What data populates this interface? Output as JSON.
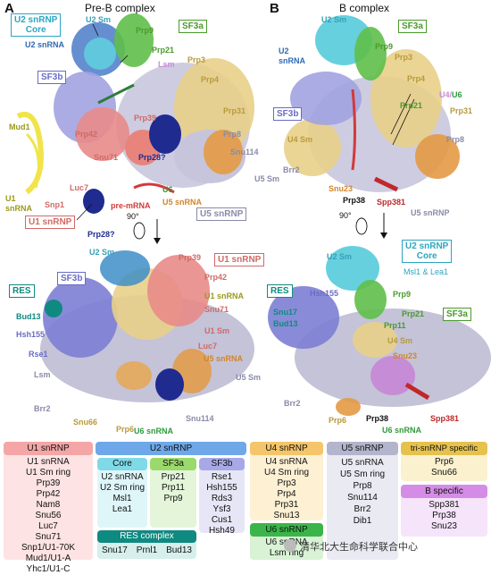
{
  "panelA": {
    "letter": "A",
    "title": "Pre-B complex",
    "labels": {
      "u2core_line1": "U2 snRNP",
      "u2core_line2": "Core",
      "u2sm": "U2 Sm",
      "sf3a": "SF3a",
      "prp9": "Prp9",
      "u2snrna": "U2 snRNA",
      "prp21": "Prp21",
      "lsm": "Lsm",
      "prp3": "Prp3",
      "prp4": "Prp4",
      "sf3b": "SF3b",
      "mud1": "Mud1",
      "prp42": "Prp42",
      "prp39": "Prp39",
      "prp31": "Prp31",
      "prp8": "Prp8",
      "snu71": "Snu71",
      "prp28a": "Prp28?",
      "snu114": "Snu114",
      "u5sm": "U5 Sm",
      "luc7": "Luc7",
      "u6": "U6",
      "u5snrna": "U5 snRNA",
      "u1snrna_line1": "U1",
      "u1snrna_line2": "snRNA",
      "snp1": "Snp1",
      "premrna": "pre-mRNA",
      "u1snrnp": "U1 snRNP",
      "prp28b": "Prp28?",
      "u5snrnp": "U5 snRNP",
      "rot": "90°",
      "res": "RES",
      "sf3b2": "SF3b",
      "u2sm2": "U2 Sm",
      "prp39b": "Prp39",
      "u1snrnp2": "U1 snRNP",
      "prp42b": "Prp42",
      "u1snrna2": "U1 snRNA",
      "snu71b": "Snu71",
      "bud13": "Bud13",
      "hsh155": "Hsh155",
      "u1sm": "U1 Sm",
      "rse1": "Rse1",
      "luc7b": "Luc7",
      "u5snrna2": "U5 snRNA",
      "lsm2": "Lsm",
      "u5sm2": "U5 Sm",
      "brr2": "Brr2",
      "snu66": "Snu66",
      "prp6": "Prp6",
      "snu114b": "Snu114",
      "u6snrna": "U6 snRNA"
    }
  },
  "panelB": {
    "letter": "B",
    "title": "B complex",
    "labels": {
      "u2sm": "U2 Sm",
      "sf3a": "SF3a",
      "prp9": "Prp9",
      "u2snrna_line1": "U2",
      "u2snrna_line2": "snRNA",
      "prp3": "Prp3",
      "prp4": "Prp4",
      "u4u6_a": "U4/",
      "u4u6_b": "U6",
      "sf3b": "SF3b",
      "prp21": "Prp21",
      "prp31": "Prp31",
      "prp8": "Prp8",
      "u4sm": "U4 Sm",
      "brr2": "Brr2",
      "snu23": "Snu23",
      "prp38": "Prp38",
      "spp381": "Spp381",
      "u5snrnp": "U5 snRNP",
      "rot": "90°",
      "u2core_line1": "U2 snRNP",
      "u2core_line2": "Core",
      "u2sm2": "U2 Sm",
      "msl1lea1": "Msl1 & Lea1",
      "res": "RES",
      "hsh155": "Hsh155",
      "prp9b": "Prp9",
      "sf3a2": "SF3a",
      "snu17": "Snu17",
      "prp21b": "Prp21",
      "bud13": "Bud13",
      "prp11": "Prp11",
      "u4sm2": "U4 Sm",
      "snu23b": "Snu23",
      "brr2b": "Brr2",
      "prp38b": "Prp38",
      "spp381b": "Spp381",
      "prp6": "Prp6",
      "u6snrna": "U6 snRNA"
    }
  },
  "legend": {
    "u1": {
      "title": "U1 snRNP",
      "items": [
        "U1 snRNA",
        "U1 Sm ring",
        "Prp39",
        "Prp42",
        "Nam8",
        "Snu56",
        "Luc7",
        "Snu71",
        "Snp1/U1-70K",
        "Mud1/U1-A",
        "Yhc1/U1-C"
      ]
    },
    "u2": {
      "title": "U2 snRNP",
      "core": {
        "title": "Core",
        "items": [
          "U2 snRNA",
          "U2 Sm ring",
          "Msl1",
          "Lea1"
        ]
      },
      "sf3a": {
        "title": "SF3a",
        "items": [
          "Prp21",
          "Prp11",
          "Prp9"
        ]
      },
      "sf3b": {
        "title": "SF3b",
        "items": [
          "Rse1",
          "Hsh155",
          "Rds3",
          "Ysf3",
          "Cus1",
          "Hsh49"
        ]
      },
      "res": {
        "title": "RES complex",
        "items": [
          "Snu17",
          "Prnl1",
          "Bud13"
        ]
      }
    },
    "u4": {
      "title": "U4 snRNP",
      "items": [
        "U4 snRNA",
        "U4 Sm ring",
        "Prp3",
        "Prp4",
        "Prp31",
        "Snu13"
      ]
    },
    "u6": {
      "title": "U6 snRNP",
      "items": [
        "U6 snRNA",
        "Lsm ring"
      ]
    },
    "u5": {
      "title": "U5 snRNP",
      "items": [
        "U5 snRNA",
        "U5 Sm ring",
        "Prp8",
        "Snu114",
        "Brr2",
        "Dib1"
      ]
    },
    "trisnrnp": {
      "title": "tri-snRNP specific",
      "items": [
        "Prp6",
        "Snu66"
      ]
    },
    "bspecific": {
      "title": "B specific",
      "items": [
        "Spp381",
        "Prp38",
        "Snu23"
      ]
    }
  },
  "watermark": "清华北大生命科学联合中心",
  "colors": {
    "u1": "#f4a6a6",
    "u1_bg": "#fde3e3",
    "u2": "#6fa8e8",
    "u2core": "#7fd9e6",
    "u2sf3a": "#9ad96b",
    "u2sf3b": "#a7a9e6",
    "u2res": "#0f8a80",
    "u4": "#f4c56a",
    "u4_bg": "#fdf0d3",
    "u6": "#3bb54a",
    "u6_bg": "#d9f2d6",
    "u5": "#b3b5cc",
    "u5_bg": "#e9eaf2",
    "tri": "#e6c24d",
    "tri_bg": "#fbf1cf",
    "bspec": "#d58ce6",
    "bspec_bg": "#f6e4fa"
  }
}
